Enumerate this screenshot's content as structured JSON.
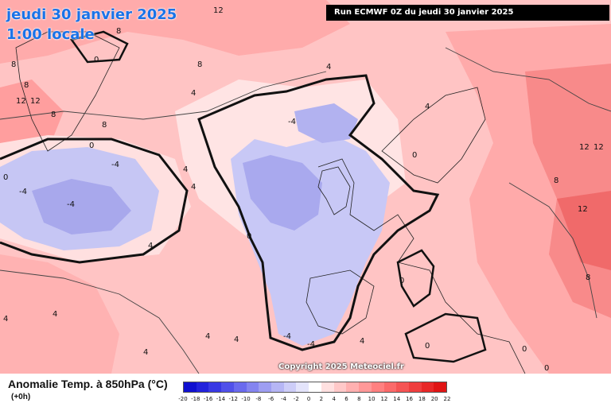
{
  "header": {
    "date": "jeudi 30 janvier 2025",
    "time": "1:00 locale",
    "run": "Run ECMWF 0Z du jeudi 30 janvier 2025"
  },
  "copyright": "Copyright 2025 Meteociel.fr",
  "legend": {
    "title": "Anomalie Temp. à 850hPa (°C)",
    "lead_time": "(+0h)",
    "ticks": [
      "-20",
      "-18",
      "-16",
      "-14",
      "-12",
      "-10",
      "-8",
      "-6",
      "-4",
      "-2",
      "0",
      "2",
      "4",
      "6",
      "8",
      "10",
      "12",
      "14",
      "16",
      "18",
      "20",
      "22"
    ],
    "colors": [
      "#1010d0",
      "#2222dc",
      "#3838e4",
      "#5050ea",
      "#6a6aee",
      "#8484f0",
      "#9e9ef2",
      "#b6b6f5",
      "#cdcdf8",
      "#e4e4fb",
      "#ffffff",
      "#ffe0e0",
      "#ffc8c8",
      "#ffb0b0",
      "#ff9898",
      "#ff8080",
      "#fb6a6a",
      "#f55454",
      "#ef3e3e",
      "#e82828",
      "#e01414"
    ]
  },
  "map": {
    "contour_labels": [
      "12",
      "8",
      "0",
      "8",
      "4",
      "8",
      "12",
      "12",
      "8",
      "0",
      "4",
      "8",
      "4",
      "0",
      "-4",
      "-4",
      "-4",
      "4",
      "4",
      "-4",
      "0",
      "0",
      "4",
      "0",
      "8",
      "12",
      "12",
      "12",
      "8",
      "0",
      "0",
      "4",
      "4",
      "4",
      "4",
      "4",
      "-4",
      "-4",
      "4",
      "8",
      "0"
    ]
  }
}
